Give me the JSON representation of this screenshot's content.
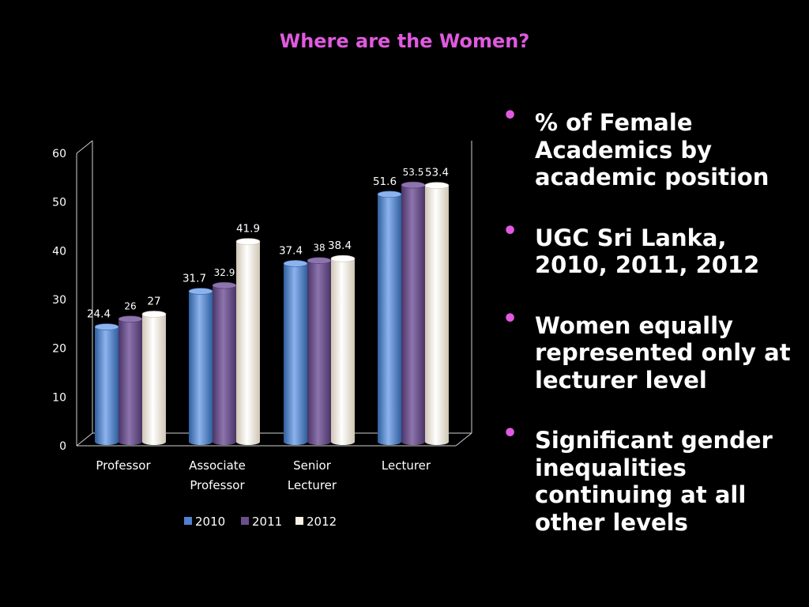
{
  "slide": {
    "title": "Where are the Women?",
    "bullets": [
      "% of Female Academics by academic position",
      "UGC Sri Lanka, 2010, 2011, 2012",
      "Women equally represented only at lecturer level",
      "Significant gender inequalities continuing at all other levels"
    ]
  },
  "colors": {
    "accent": "#e05ae0",
    "2010": "#4f81cf",
    "2011": "#6a4f8c",
    "2012": "#fbf3e4"
  },
  "chart_data": {
    "type": "bar",
    "categories": [
      [
        "Professor"
      ],
      [
        "Associate",
        "Professor"
      ],
      [
        "Senior",
        "Lecturer"
      ],
      [
        "Lecturer"
      ]
    ],
    "series": [
      {
        "name": "2010",
        "values": [
          24.4,
          31.7,
          37.4,
          51.6
        ]
      },
      {
        "name": "2011",
        "values": [
          26,
          32.9,
          38,
          53.5
        ]
      },
      {
        "name": "2012",
        "values": [
          27,
          41.9,
          38.4,
          53.4
        ]
      }
    ],
    "ylim": [
      0,
      60
    ],
    "yticks": [
      0,
      10,
      20,
      30,
      40,
      50,
      60
    ],
    "legend": "bottom",
    "grid": false,
    "style": "3d-cylinder"
  }
}
